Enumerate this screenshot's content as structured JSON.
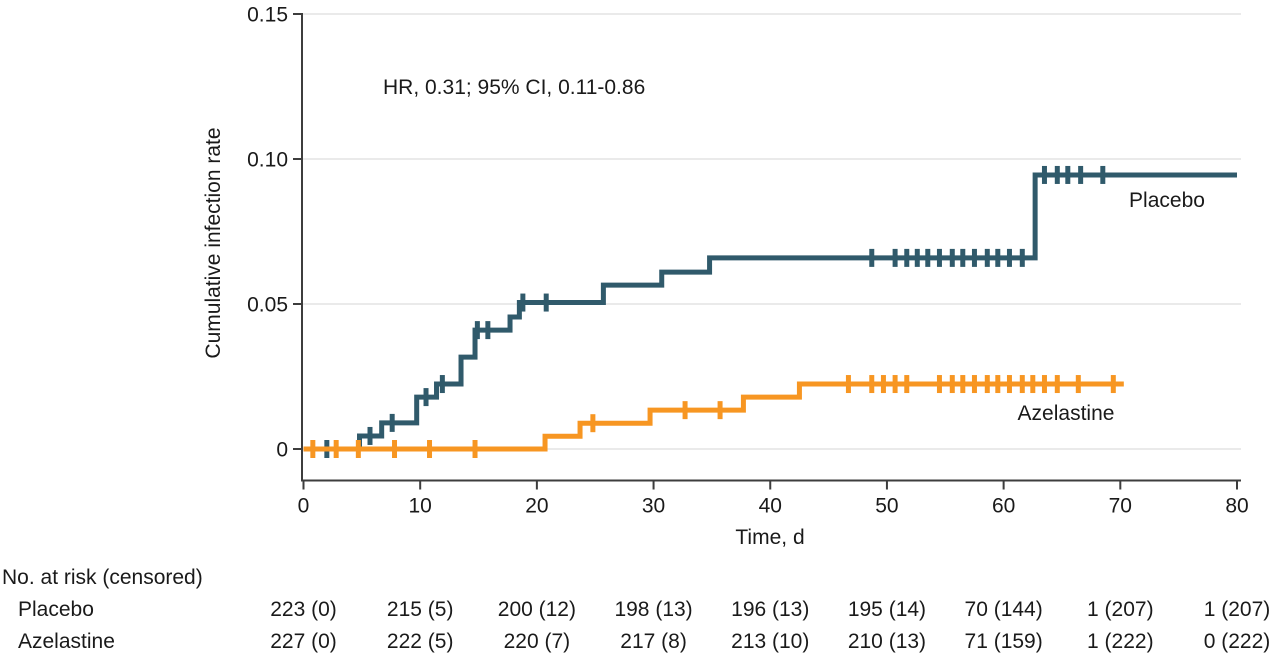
{
  "chart_data": {
    "type": "line",
    "subtype": "kaplan-meier-step",
    "annotation": "HR, 0.31; 95% CI, 0.11-0.86",
    "xlabel": "Time, d",
    "ylabel": "Cumulative infection rate",
    "xlim": [
      0,
      80
    ],
    "ylim": [
      0,
      0.15
    ],
    "x_ticks": [
      0,
      10,
      20,
      30,
      40,
      50,
      60,
      70,
      80
    ],
    "y_ticks": [
      0,
      0.05,
      0.1,
      0.15
    ],
    "y_tick_labels": [
      "0",
      "0.05",
      "0.10",
      "0.15"
    ],
    "grid": true,
    "legend_position": "inline-right",
    "colors": {
      "grid": "#E4E4E4",
      "axis": "#3D3D3D",
      "text": "#1A1A1A"
    },
    "series": [
      {
        "name": "Placebo",
        "color": "#305A6B",
        "start": [
          0,
          0
        ],
        "end_day": 80,
        "steps": [
          [
            4.8,
            0.0045
          ],
          [
            6.7,
            0.009
          ],
          [
            9.7,
            0.0179
          ],
          [
            11.4,
            0.0224
          ],
          [
            13.5,
            0.0317
          ],
          [
            14.7,
            0.041
          ],
          [
            17.7,
            0.0455
          ],
          [
            18.5,
            0.0505
          ],
          [
            25.7,
            0.0565
          ],
          [
            30.7,
            0.061
          ],
          [
            34.8,
            0.0659
          ],
          [
            62.7,
            0.0945
          ]
        ],
        "censors": [
          [
            2.0,
            0
          ],
          [
            5.7,
            0.0045
          ],
          [
            7.6,
            0.009
          ],
          [
            10.5,
            0.0179
          ],
          [
            11.9,
            0.0224
          ],
          [
            14.9,
            0.041
          ],
          [
            15.8,
            0.041
          ],
          [
            18.8,
            0.0505
          ],
          [
            20.8,
            0.0505
          ],
          [
            48.7,
            0.0659
          ],
          [
            50.7,
            0.0659
          ],
          [
            51.7,
            0.0659
          ],
          [
            52.6,
            0.0659
          ],
          [
            53.5,
            0.0659
          ],
          [
            54.5,
            0.0659
          ],
          [
            55.6,
            0.0659
          ],
          [
            56.5,
            0.0659
          ],
          [
            57.5,
            0.0659
          ],
          [
            58.6,
            0.0659
          ],
          [
            59.5,
            0.0659
          ],
          [
            60.5,
            0.0659
          ],
          [
            61.6,
            0.0659
          ],
          [
            63.5,
            0.0945
          ],
          [
            64.6,
            0.0945
          ],
          [
            65.5,
            0.0945
          ],
          [
            66.6,
            0.0945
          ],
          [
            68.5,
            0.0945
          ]
        ]
      },
      {
        "name": "Azelastine",
        "color": "#F79622",
        "start": [
          0,
          0
        ],
        "end_day": 70.3,
        "steps": [
          [
            20.7,
            0.0044
          ],
          [
            23.7,
            0.0089
          ],
          [
            29.7,
            0.0134
          ],
          [
            37.7,
            0.0179
          ],
          [
            42.5,
            0.0224
          ]
        ],
        "censors": [
          [
            0.8,
            0
          ],
          [
            2.8,
            0
          ],
          [
            4.7,
            0
          ],
          [
            7.8,
            0
          ],
          [
            10.8,
            0
          ],
          [
            14.7,
            0
          ],
          [
            24.8,
            0.0089
          ],
          [
            32.7,
            0.0134
          ],
          [
            35.7,
            0.0134
          ],
          [
            46.7,
            0.0224
          ],
          [
            48.7,
            0.0224
          ],
          [
            49.7,
            0.0224
          ],
          [
            50.7,
            0.0224
          ],
          [
            51.7,
            0.0224
          ],
          [
            54.5,
            0.0224
          ],
          [
            55.6,
            0.0224
          ],
          [
            56.5,
            0.0224
          ],
          [
            57.5,
            0.0224
          ],
          [
            58.6,
            0.0224
          ],
          [
            59.5,
            0.0224
          ],
          [
            60.5,
            0.0224
          ],
          [
            61.6,
            0.0224
          ],
          [
            62.5,
            0.0224
          ],
          [
            63.5,
            0.0224
          ],
          [
            64.6,
            0.0224
          ],
          [
            66.4,
            0.0224
          ],
          [
            69.4,
            0.0224
          ]
        ]
      }
    ]
  },
  "risk_table": {
    "header": "No. at risk (censored)",
    "columns_days": [
      0,
      10,
      20,
      30,
      40,
      50,
      60,
      70,
      80
    ],
    "rows": [
      {
        "label": "Placebo",
        "values": [
          "223 (0)",
          "215 (5)",
          "200 (12)",
          "198 (13)",
          "196 (13)",
          "195 (14)",
          "70 (144)",
          "1 (207)",
          "1 (207)"
        ]
      },
      {
        "label": "Azelastine",
        "values": [
          "227 (0)",
          "222 (5)",
          "220 (7)",
          "217 (8)",
          "213 (10)",
          "210 (13)",
          "71 (159)",
          "1 (222)",
          "0 (222)"
        ]
      }
    ]
  }
}
